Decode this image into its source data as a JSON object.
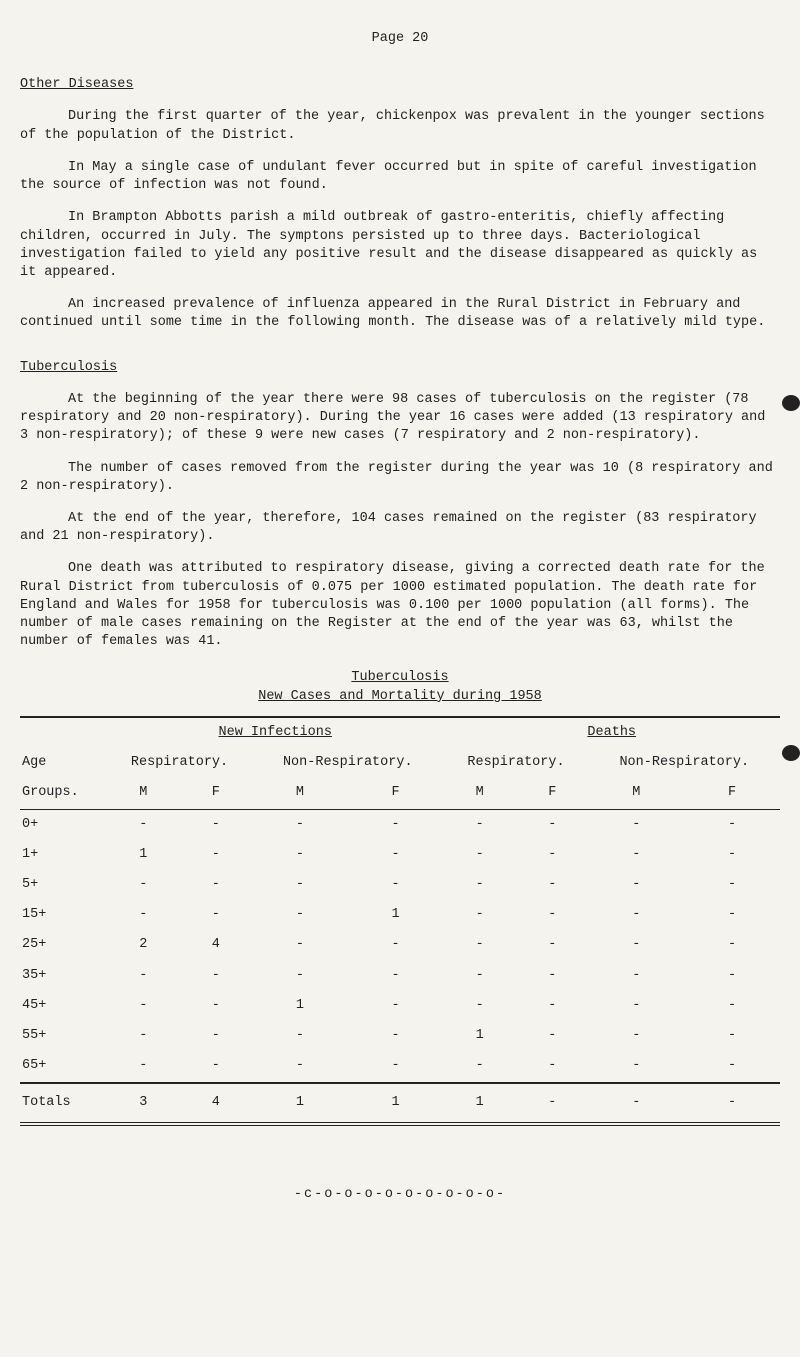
{
  "page_label": "Page 20",
  "sections": {
    "other": {
      "heading": "Other Diseases",
      "p1": "During the first quarter of the year, chickenpox was prevalent in the younger sections of the population of the District.",
      "p2": "In May a single case of undulant fever occurred but in spite of careful investigation the source of infection was not found.",
      "p3": "In Brampton Abbotts parish a mild outbreak of gastro-enteritis, chiefly affecting children, occurred in July. The symptons persisted up to three days. Bacteriological investigation failed to yield any positive result and the disease disappeared as quickly as it appeared.",
      "p4": "An increased prevalence of influenza appeared in the Rural District in February and continued until some time in the following month. The disease was of a relatively mild type."
    },
    "tb": {
      "heading": "Tuberculosis",
      "p1": "At the beginning of the year there were 98 cases of tuberculosis on the register (78 respiratory and 20 non-respiratory). During the year 16 cases were added (13 respiratory and 3 non-respiratory); of these 9 were new cases (7 respiratory and 2 non-respiratory).",
      "p2": "The number of cases removed from the register during the year was 10 (8 respiratory and 2 non-respiratory).",
      "p3": "At the end of the year, therefore, 104 cases remained on the register (83 respiratory and 21 non-respiratory).",
      "p4": "One death was attributed to respiratory disease, giving a corrected death rate for the Rural District from tuberculosis of 0.075 per 1000 estimated population. The death rate for England and Wales for 1958 for tuberculosis was 0.100 per 1000 population (all forms). The number of male cases remaining on the Register at the end of the year was 63, whilst the number of females was 41."
    }
  },
  "table": {
    "title1": "Tuberculosis",
    "title2": "New Cases and Mortality during 1958",
    "super_new": "New Infections",
    "super_deaths": "Deaths",
    "age_label": "Age",
    "groups_label": "Groups.",
    "resp_label": "Respiratory.",
    "nonresp_label": "Non-Respiratory.",
    "m_label": "M",
    "f_label": "F",
    "rows": [
      {
        "age": "0+",
        "v": [
          "-",
          "-",
          "-",
          "-",
          "-",
          "-",
          "-",
          "-"
        ]
      },
      {
        "age": "1+",
        "v": [
          "1",
          "-",
          "-",
          "-",
          "-",
          "-",
          "-",
          "-"
        ]
      },
      {
        "age": "5+",
        "v": [
          "-",
          "-",
          "-",
          "-",
          "-",
          "-",
          "-",
          "-"
        ]
      },
      {
        "age": "15+",
        "v": [
          "-",
          "-",
          "-",
          "1",
          "-",
          "-",
          "-",
          "-"
        ]
      },
      {
        "age": "25+",
        "v": [
          "2",
          "4",
          "-",
          "-",
          "-",
          "-",
          "-",
          "-"
        ]
      },
      {
        "age": "35+",
        "v": [
          "-",
          "-",
          "-",
          "-",
          "-",
          "-",
          "-",
          "-"
        ]
      },
      {
        "age": "45+",
        "v": [
          "-",
          "-",
          "1",
          "-",
          "-",
          "-",
          "-",
          "-"
        ]
      },
      {
        "age": "55+",
        "v": [
          "-",
          "-",
          "-",
          "-",
          "1",
          "-",
          "-",
          "-"
        ]
      },
      {
        "age": "65+",
        "v": [
          "-",
          "-",
          "-",
          "-",
          "-",
          "-",
          "-",
          "-"
        ]
      }
    ],
    "totals_label": "Totals",
    "totals": [
      "3",
      "4",
      "1",
      "1",
      "1",
      "-",
      "-",
      "-"
    ]
  },
  "footer": "-c-o-o-o-o-o-o-o-o-o-"
}
